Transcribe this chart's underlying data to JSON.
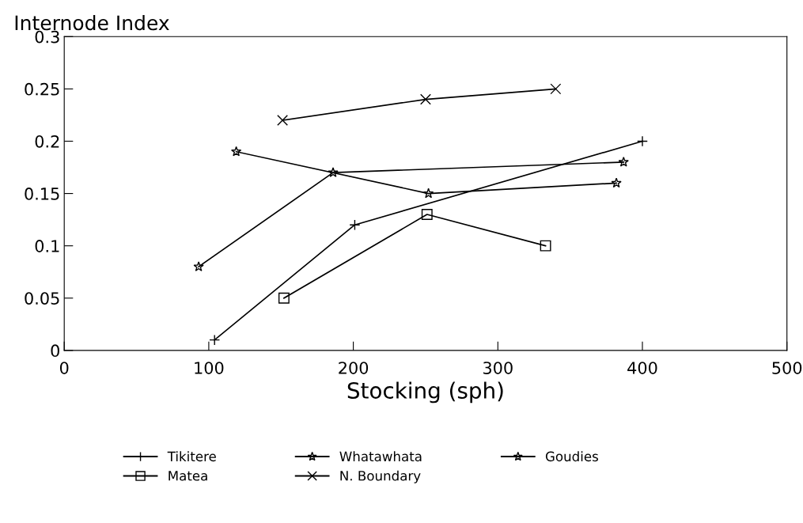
{
  "chart_data": {
    "type": "line",
    "ylabel": "Internode Index",
    "xlabel": "Stocking (sph)",
    "xlim": [
      0,
      500
    ],
    "xticks": [
      0,
      100,
      200,
      300,
      400,
      500
    ],
    "ylim": [
      0,
      0.3
    ],
    "yticks": [
      0,
      0.05,
      0.1,
      0.15,
      0.2,
      0.25,
      0.3
    ],
    "grid": false,
    "legend": "bottom",
    "series": [
      {
        "name": "Tikitere",
        "color": "#000000",
        "marker": "plus",
        "x": [
          104,
          201,
          400
        ],
        "values": [
          0.01,
          0.12,
          0.2
        ]
      },
      {
        "name": "Matea",
        "color": "#000000",
        "marker": "square",
        "x": [
          152,
          251,
          333
        ],
        "values": [
          0.05,
          0.13,
          0.1
        ]
      },
      {
        "name": "Whatawhata",
        "color": "#000000",
        "marker": "star",
        "x": [
          93,
          186,
          387
        ],
        "values": [
          0.08,
          0.17,
          0.18
        ]
      },
      {
        "name": "N. Boundary",
        "color": "#000000",
        "marker": "cross",
        "x": [
          151,
          250,
          340
        ],
        "values": [
          0.22,
          0.24,
          0.25
        ]
      },
      {
        "name": "Goudies",
        "color": "#000000",
        "marker": "star",
        "x": [
          119,
          252,
          382
        ],
        "values": [
          0.19,
          0.15,
          0.16
        ]
      }
    ]
  }
}
